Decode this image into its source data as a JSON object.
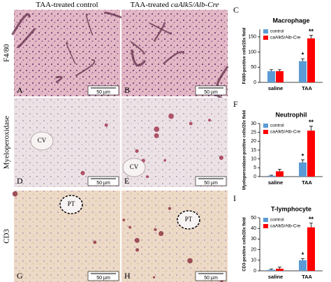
{
  "figure": {
    "col_headers": [
      {
        "text": "TAA-treated control"
      },
      {
        "text": "TAA-treated ",
        "italic": "caAlk5/Alb-Cre"
      }
    ],
    "row_headers": [
      "F4/80",
      "Myeloperoxidase",
      "CD3"
    ],
    "panels": [
      {
        "letter": "A",
        "scale": "50 µm"
      },
      {
        "letter": "B",
        "scale": "50 µm"
      },
      {
        "letter": "D",
        "scale": "50 µm",
        "label": "CV"
      },
      {
        "letter": "E",
        "scale": "50 µm",
        "label": "CV"
      },
      {
        "letter": "G",
        "scale": "50 µm",
        "label": "PT"
      },
      {
        "letter": "H",
        "scale": "50 µm",
        "label": "PT"
      }
    ]
  },
  "chart_data": [
    {
      "type": "bar",
      "letter": "C",
      "title": "Macrophage",
      "y_label": "F4/80-positive cells/20x field",
      "categories": [
        "saline",
        "TAA"
      ],
      "series": [
        {
          "name": "control",
          "color": "#5b9bd5",
          "values": [
            37,
            70
          ],
          "errors": [
            5,
            8
          ]
        },
        {
          "name": "caAlk5/Alb-Cre",
          "color": "#ff0000",
          "values": [
            37,
            145
          ],
          "errors": [
            5,
            10
          ]
        }
      ],
      "ylim": [
        0,
        175
      ],
      "yticks": [
        0,
        50,
        100,
        150
      ],
      "legend": "upper-left",
      "annotations": [
        {
          "text": "*",
          "series": "control",
          "category": "TAA"
        },
        {
          "text": "**",
          "series": "caAlk5/Alb-Cre",
          "category": "TAA"
        }
      ]
    },
    {
      "type": "bar",
      "letter": "F",
      "title": "Neutrophil",
      "y_label": "Myeloperoxidase-positive cells/20x field",
      "categories": [
        "saline",
        "TAA"
      ],
      "series": [
        {
          "name": "control",
          "color": "#5b9bd5",
          "values": [
            0.5,
            8
          ],
          "errors": [
            0.3,
            1.5
          ]
        },
        {
          "name": "caAlk5/Alb-Cre",
          "color": "#ff0000",
          "values": [
            3,
            26
          ],
          "errors": [
            1.2,
            2.5
          ]
        }
      ],
      "ylim": [
        0,
        30
      ],
      "yticks": [
        0,
        5,
        10,
        15,
        20,
        25,
        30
      ],
      "legend": "upper-left",
      "annotations": [
        {
          "text": "*",
          "series": "control",
          "category": "TAA"
        },
        {
          "text": "**",
          "series": "caAlk5/Alb-Cre",
          "category": "TAA"
        }
      ]
    },
    {
      "type": "bar",
      "letter": "I",
      "title": "T-lymphocyte",
      "y_label": "CD3-positive cells/20x field",
      "categories": [
        "saline",
        "TAA"
      ],
      "series": [
        {
          "name": "control",
          "color": "#5b9bd5",
          "values": [
            1,
            10
          ],
          "errors": [
            0.8,
            1.5
          ]
        },
        {
          "name": "caAlk5/Alb-Cre",
          "color": "#ff0000",
          "values": [
            2,
            41
          ],
          "errors": [
            1.5,
            4
          ]
        }
      ],
      "ylim": [
        0,
        50
      ],
      "yticks": [
        0,
        10,
        20,
        30,
        40,
        50
      ],
      "legend": "upper-left",
      "annotations": [
        {
          "text": "*",
          "series": "control",
          "category": "TAA"
        },
        {
          "text": "**",
          "series": "caAlk5/Alb-Cre",
          "category": "TAA"
        }
      ]
    }
  ]
}
